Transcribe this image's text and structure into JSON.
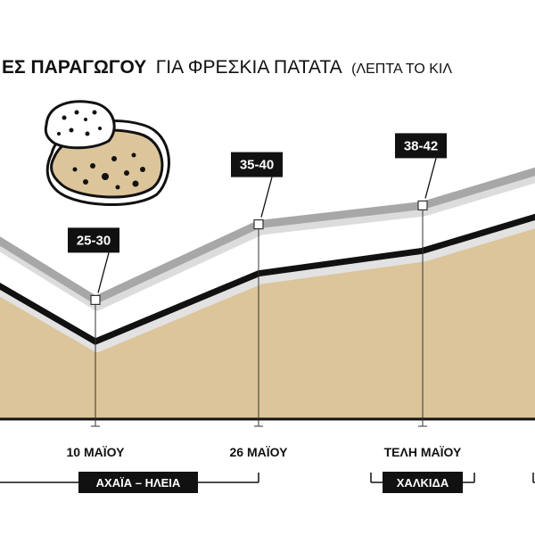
{
  "title": {
    "bold": "ΕΣ ΠΑΡΑΓΩΓΟΥ",
    "regular": "ΓΙΑ ΦΡΕΣΚΙΑ ΠΑΤΑΤΑ",
    "unit": "(ΛΕΠΤΑ ΤΟ ΚΙΛ"
  },
  "icon": "potato-icon",
  "colors": {
    "area": "#dcc59a",
    "line": "#111111",
    "band": "#a7a7a7",
    "label_bg": "#111111",
    "icon_fill": "#dcc59a"
  },
  "chart_data": {
    "type": "line",
    "unit": "λεπτά το κιλό",
    "x": [
      "",
      "10 ΜΑΪΟΥ",
      "26 ΜΑΪΟΥ",
      "ΤΕΛΗ ΜΑΪΟΥ",
      ""
    ],
    "series": [
      {
        "values": [
          30,
          22,
          31,
          34,
          39
        ]
      },
      {
        "values": [
          36,
          27.5,
          37.5,
          40,
          45
        ]
      }
    ],
    "ranges": [
      {
        "x": "10 ΜΑΪΟΥ",
        "label": "25-30"
      },
      {
        "x": "26 ΜΑΪΟΥ",
        "label": "35-40"
      },
      {
        "x": "ΤΕΛΗ ΜΑΪΟΥ",
        "label": "38-42"
      }
    ],
    "regions": [
      {
        "label": "ΑΧΑΪΑ – ΗΛΕΙΑ",
        "from": 0,
        "to": 2
      },
      {
        "label": "ΧΑΛΚΙΔΑ",
        "from": 3,
        "to": 3
      }
    ]
  }
}
